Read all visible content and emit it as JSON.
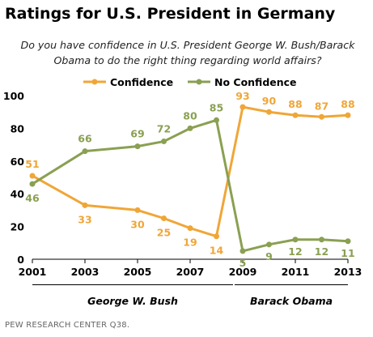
{
  "title": "Ratings for U.S. President in Germany",
  "subtitle": "Do you have confidence in U.S. President George W. Bush/Barack Obama to do the right thing regarding world affairs?",
  "source": "PEW RESEARCH CENTER Q38.",
  "eras": [
    "George W. Bush",
    "Barack Obama"
  ],
  "colors": {
    "confidence": "#f0a637",
    "no_confidence": "#8aa052"
  },
  "chart_data": {
    "type": "line",
    "x_ticks": [
      "2001",
      "2003",
      "2005",
      "2007",
      "2009",
      "2011",
      "2013"
    ],
    "y_ticks": [
      "0",
      "20",
      "40",
      "60",
      "80",
      "100"
    ],
    "ylim": [
      0,
      100
    ],
    "grid": false,
    "legend_position": "top-center",
    "series": [
      {
        "name": "Confidence",
        "color": "#f0a637",
        "x": [
          2001,
          2003,
          2005,
          2006,
          2007,
          2008,
          2009,
          2010,
          2011,
          2012,
          2013
        ],
        "values": [
          51,
          33,
          30,
          25,
          19,
          14,
          93,
          90,
          88,
          87,
          88
        ]
      },
      {
        "name": "No Confidence",
        "color": "#8aa052",
        "x": [
          2001,
          2003,
          2005,
          2006,
          2007,
          2008,
          2009,
          2010,
          2011,
          2012,
          2013
        ],
        "values": [
          46,
          66,
          69,
          72,
          80,
          85,
          5,
          9,
          12,
          12,
          11
        ]
      }
    ]
  }
}
